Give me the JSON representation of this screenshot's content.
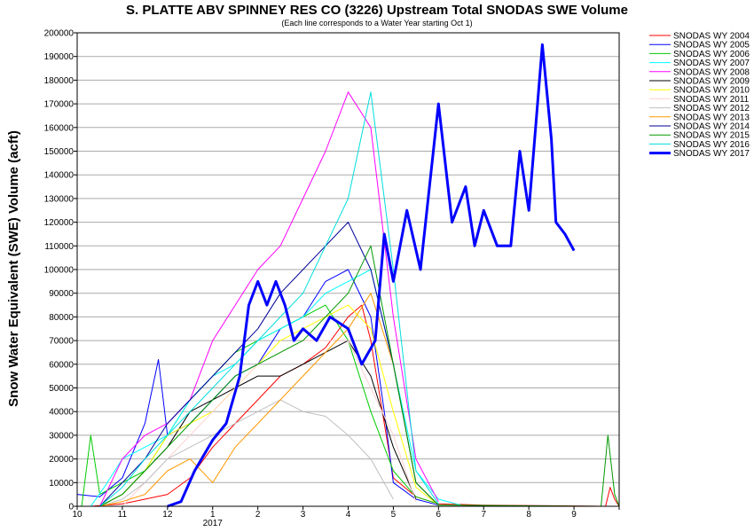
{
  "chart_data": {
    "type": "line",
    "title": "S. PLATTE ABV SPINNEY RES CO (3226) Upstream Total SNODAS SWE Volume",
    "subtitle": "(Each line corresponds to a Water Year starting Oct 1)",
    "ylabel": "Snow Water Equivalent (SWE) Volume (acft)",
    "xlabel": "",
    "ylim": [
      0,
      200000
    ],
    "yticks": [
      0,
      10000,
      20000,
      30000,
      40000,
      50000,
      60000,
      70000,
      80000,
      90000,
      100000,
      110000,
      120000,
      130000,
      140000,
      150000,
      160000,
      170000,
      180000,
      190000,
      200000
    ],
    "ytick_labels": [
      "0",
      "10000",
      "20000",
      "30000",
      "40000",
      "50000",
      "60000",
      "70000",
      "80000",
      "90000",
      "100000",
      "110000",
      "120000",
      "130000",
      "140000",
      "150000",
      "160000",
      "170000",
      "180000",
      "190000",
      "200000"
    ],
    "xlim": [
      0,
      12
    ],
    "xtick_positions": [
      0,
      1,
      2,
      3,
      4,
      5,
      6,
      7,
      8,
      9,
      10,
      11,
      12
    ],
    "xtick_labels": [
      "10",
      "11",
      "12",
      "1",
      "2",
      "3",
      "4",
      "5",
      "6",
      "7",
      "8",
      "9",
      ""
    ],
    "x_year_label": "2017",
    "x_year_label_at": 3,
    "x_units": "months since Oct 1",
    "legend_position": "top-right",
    "series": [
      {
        "name": "SNODAS WY 2004",
        "color": "#ff0000",
        "width": 1,
        "x": [
          0.3,
          1.0,
          1.5,
          2.0,
          2.5,
          3.0,
          3.5,
          4.0,
          4.5,
          5.0,
          5.5,
          6.0,
          6.3,
          6.5,
          6.8,
          7.0,
          7.5,
          8,
          9,
          11.7,
          11.8,
          11.9,
          12
        ],
        "y": [
          0,
          1000,
          3000,
          5000,
          12000,
          25000,
          35000,
          45000,
          55000,
          60000,
          67000,
          80000,
          85000,
          70000,
          35000,
          12000,
          4000,
          1000,
          500,
          0,
          8000,
          3000,
          0
        ]
      },
      {
        "name": "SNODAS WY 2005",
        "color": "#0000ff",
        "width": 1,
        "x": [
          0,
          0.5,
          1.0,
          1.5,
          1.8,
          2.0,
          2.5,
          3.0,
          3.5,
          4.0,
          4.5,
          5.0,
          5.5,
          6.0,
          6.5,
          6.8,
          7.0,
          7.5,
          8
        ],
        "y": [
          5000,
          4000,
          12000,
          35000,
          62000,
          30000,
          35000,
          45000,
          55000,
          60000,
          75000,
          80000,
          95000,
          100000,
          80000,
          40000,
          10000,
          3000,
          500
        ]
      },
      {
        "name": "SNODAS WY 2006",
        "color": "#00cc00",
        "width": 1,
        "x": [
          0.1,
          0.3,
          0.5,
          1.0,
          1.5,
          2.0,
          2.5,
          3.0,
          3.5,
          4.0,
          4.5,
          5.0,
          5.5,
          6.0,
          6.5,
          7.0,
          7.5,
          8
        ],
        "y": [
          0,
          30000,
          5000,
          10000,
          15000,
          30000,
          45000,
          55000,
          65000,
          70000,
          75000,
          80000,
          85000,
          70000,
          40000,
          15000,
          4000,
          1000
        ]
      },
      {
        "name": "SNODAS WY 2007",
        "color": "#00ffff",
        "width": 1,
        "x": [
          0.3,
          0.6,
          1.0,
          1.5,
          2.0,
          2.5,
          3.0,
          3.5,
          4.0,
          4.5,
          5.0,
          5.5,
          6.0,
          6.5,
          7.0,
          7.5,
          8,
          8.5
        ],
        "y": [
          0,
          8000,
          20000,
          25000,
          30000,
          45000,
          55000,
          60000,
          70000,
          75000,
          80000,
          90000,
          95000,
          100000,
          60000,
          15000,
          3000,
          500
        ]
      },
      {
        "name": "SNODAS WY 2008",
        "color": "#ff00ff",
        "width": 1,
        "x": [
          0.5,
          1.0,
          1.5,
          2.0,
          2.5,
          3.0,
          3.5,
          4.0,
          4.5,
          5.0,
          5.5,
          6.0,
          6.5,
          7.0,
          7.5,
          8
        ],
        "y": [
          0,
          20000,
          30000,
          35000,
          45000,
          70000,
          85000,
          100000,
          110000,
          130000,
          150000,
          175000,
          160000,
          80000,
          20000,
          2000
        ]
      },
      {
        "name": "SNODAS WY 2009",
        "color": "#000000",
        "width": 1,
        "x": [
          0.5,
          1.0,
          1.5,
          2.0,
          2.5,
          3.0,
          3.5,
          4.0,
          4.5,
          5.0,
          5.5,
          6.0,
          6.5,
          7.0,
          7.5
        ],
        "y": [
          0,
          5000,
          15000,
          25000,
          40000,
          45000,
          50000,
          55000,
          55000,
          60000,
          65000,
          70000,
          55000,
          25000,
          3000
        ]
      },
      {
        "name": "SNODAS WY 2010",
        "color": "#ffff00",
        "width": 1,
        "x": [
          0.5,
          1.0,
          1.5,
          2.0,
          2.5,
          3.0,
          3.5,
          4.0,
          4.5,
          5.0,
          5.5,
          6.0,
          6.5,
          7.0,
          7.5,
          8
        ],
        "y": [
          0,
          5000,
          15000,
          30000,
          35000,
          40000,
          50000,
          60000,
          70000,
          75000,
          80000,
          85000,
          75000,
          40000,
          8000,
          500
        ]
      },
      {
        "name": "SNODAS WY 2011",
        "color": "#ffd0d0",
        "width": 1,
        "x": [
          1.0,
          2.0,
          3.0,
          4.0,
          5.0,
          6.0,
          7.0,
          7.5
        ],
        "y": [
          0,
          20000,
          40000,
          60000,
          70000,
          70000,
          30000,
          2000
        ]
      },
      {
        "name": "SNODAS WY 2012",
        "color": "#c0c0c0",
        "width": 1,
        "x": [
          0.5,
          1.0,
          1.5,
          2.0,
          2.5,
          3.0,
          3.5,
          4.0,
          4.5,
          5.0,
          5.5,
          6.0,
          6.5,
          7.0
        ],
        "y": [
          0,
          3000,
          10000,
          20000,
          25000,
          30000,
          35000,
          40000,
          45000,
          40000,
          38000,
          30000,
          20000,
          3000
        ]
      },
      {
        "name": "SNODAS WY 2013",
        "color": "#ff9900",
        "width": 1,
        "x": [
          0.5,
          1.0,
          1.5,
          2.0,
          2.5,
          3.0,
          3.5,
          4.0,
          4.5,
          5.0,
          5.5,
          6.0,
          6.5,
          7.0,
          7.5,
          8
        ],
        "y": [
          0,
          2000,
          5000,
          15000,
          20000,
          10000,
          25000,
          35000,
          45000,
          55000,
          65000,
          75000,
          90000,
          60000,
          10000,
          500
        ]
      },
      {
        "name": "SNODAS WY 2014",
        "color": "#000099",
        "width": 1,
        "x": [
          0.5,
          1.0,
          1.5,
          2.0,
          2.5,
          3.0,
          3.5,
          4.0,
          4.5,
          5.0,
          5.5,
          6.0,
          6.5,
          7.0,
          7.5,
          8
        ],
        "y": [
          0,
          10000,
          20000,
          35000,
          45000,
          55000,
          65000,
          75000,
          90000,
          100000,
          110000,
          120000,
          100000,
          60000,
          10000,
          500
        ]
      },
      {
        "name": "SNODAS WY 2015",
        "color": "#009900",
        "width": 1,
        "x": [
          0.5,
          1.0,
          1.5,
          2.0,
          2.5,
          3.0,
          3.5,
          4.0,
          4.5,
          5.0,
          5.5,
          6.0,
          6.5,
          7.0,
          7.5,
          8,
          11.6,
          11.75,
          11.9,
          12
        ],
        "y": [
          0,
          5000,
          15000,
          25000,
          35000,
          45000,
          55000,
          60000,
          65000,
          70000,
          80000,
          90000,
          110000,
          60000,
          10000,
          500,
          0,
          30000,
          5000,
          0
        ]
      },
      {
        "name": "SNODAS WY 2016",
        "color": "#00dddd",
        "width": 1,
        "x": [
          0.5,
          1.0,
          1.5,
          2.0,
          2.5,
          3.0,
          3.5,
          4.0,
          4.5,
          5.0,
          5.5,
          6.0,
          6.5,
          7.0,
          7.5,
          8
        ],
        "y": [
          0,
          8000,
          20000,
          30000,
          40000,
          50000,
          60000,
          70000,
          80000,
          90000,
          110000,
          130000,
          175000,
          100000,
          15000,
          1000
        ]
      },
      {
        "name": "SNODAS WY 2017",
        "color": "#0000ff",
        "width": 3,
        "x": [
          2.0,
          2.3,
          2.6,
          3.0,
          3.3,
          3.6,
          3.8,
          4.0,
          4.2,
          4.4,
          4.6,
          4.8,
          5.0,
          5.3,
          5.6,
          6.0,
          6.3,
          6.6,
          6.8,
          7.0,
          7.3,
          7.6,
          8.0,
          8.3,
          8.6,
          8.8,
          9.0,
          9.3,
          9.6,
          9.8,
          10.0,
          10.3,
          10.5,
          10.6,
          10.8,
          11.0
        ],
        "y": [
          0,
          2000,
          15000,
          28000,
          35000,
          55000,
          85000,
          95000,
          85000,
          95000,
          85000,
          70000,
          75000,
          70000,
          80000,
          75000,
          60000,
          70000,
          115000,
          95000,
          125000,
          100000,
          170000,
          120000,
          135000,
          110000,
          125000,
          110000,
          110000,
          150000,
          125000,
          195000,
          155000,
          120000,
          115000,
          108000
        ]
      }
    ]
  }
}
